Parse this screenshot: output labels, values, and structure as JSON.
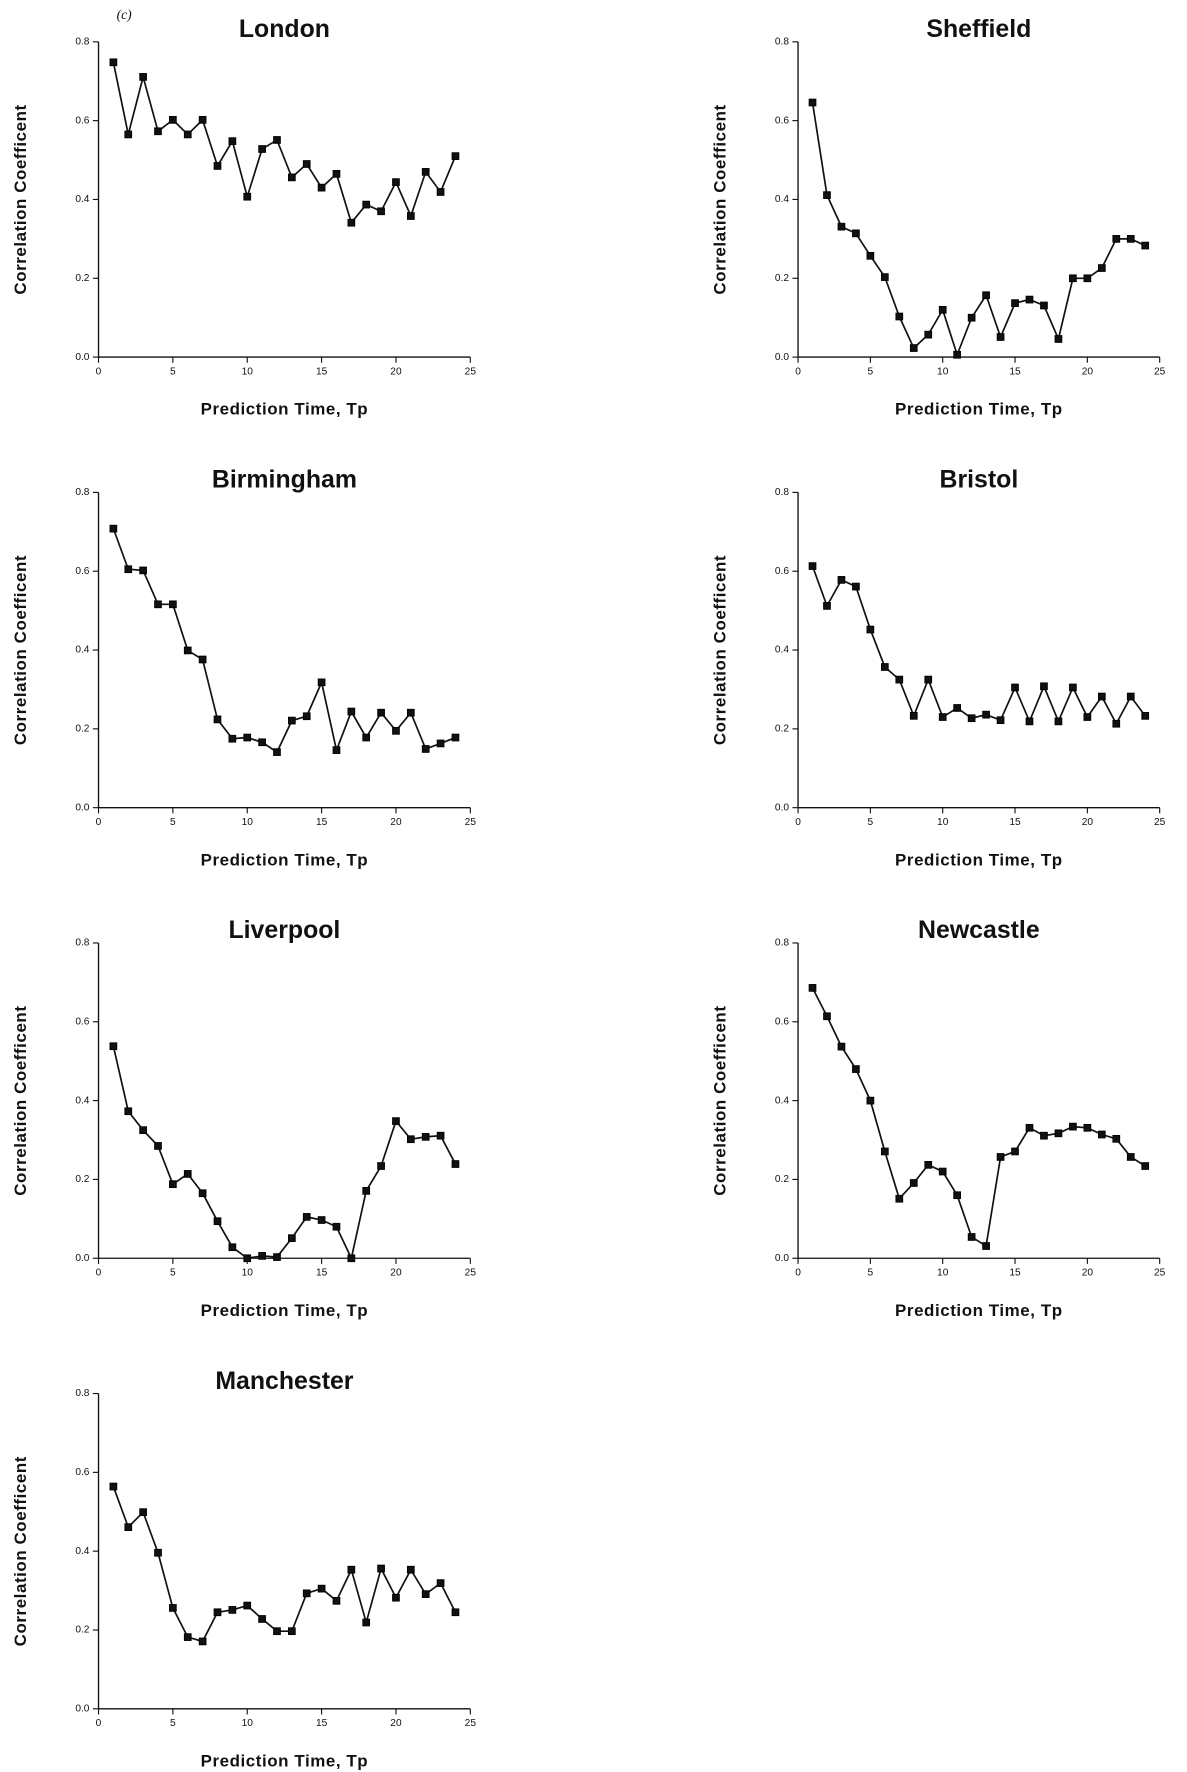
{
  "panel_label": "(c)",
  "chart_data": [
    {
      "type": "line",
      "title": "London",
      "xlabel": "Prediction Time,  Tp",
      "ylabel": "Correlation   Coefficent",
      "color": "#111111",
      "x": [
        1,
        2,
        3,
        4,
        5,
        6,
        7,
        8,
        9,
        10,
        11,
        12,
        13,
        14,
        15,
        16,
        17,
        18,
        19,
        20,
        21,
        22,
        23,
        24
      ],
      "values": [
        0.748,
        0.565,
        0.711,
        0.573,
        0.602,
        0.565,
        0.602,
        0.485,
        0.548,
        0.407,
        0.528,
        0.551,
        0.456,
        0.49,
        0.43,
        0.465,
        0.341,
        0.387,
        0.37,
        0.444,
        0.358,
        0.47,
        0.419,
        0.51
      ],
      "xlim": [
        0,
        25
      ],
      "xticks": [
        0,
        5,
        10,
        15,
        20,
        25
      ],
      "ylim": [
        0,
        0.8
      ],
      "yticks": [
        {
          "value": 0,
          "label": "0.0"
        },
        0.2,
        0.4,
        0.6,
        0.8
      ]
    },
    {
      "type": "line",
      "title": "Sheffield",
      "xlabel": "Prediction Time,  Tp",
      "ylabel": "Correlation   Coefficent",
      "color": "#111111",
      "x": [
        1,
        2,
        3,
        4,
        5,
        6,
        7,
        8,
        9,
        10,
        11,
        12,
        13,
        14,
        15,
        16,
        17,
        18,
        19,
        20,
        21,
        22,
        23,
        24
      ],
      "values": [
        0.646,
        0.411,
        0.331,
        0.314,
        0.257,
        0.203,
        0.103,
        0.023,
        0.057,
        0.12,
        0.006,
        0.1,
        0.157,
        0.051,
        0.137,
        0.146,
        0.131,
        0.046,
        0.2,
        0.2,
        0.226,
        0.3,
        0.3,
        0.283
      ],
      "xlim": [
        0,
        25
      ],
      "xticks": [
        0,
        5,
        10,
        15,
        20,
        25
      ],
      "ylim": [
        0,
        0.8
      ],
      "yticks": [
        {
          "value": 0,
          "label": "0.0"
        },
        0.2,
        0.4,
        0.6,
        0.8
      ]
    },
    {
      "type": "line",
      "title": "Birmingham",
      "xlabel": "Prediction Time,  Tp",
      "ylabel": "Correlation   Coefficent",
      "color": "#111111",
      "x": [
        1,
        2,
        3,
        4,
        5,
        6,
        7,
        8,
        9,
        10,
        11,
        12,
        13,
        14,
        15,
        16,
        17,
        18,
        19,
        20,
        21,
        22,
        23,
        24
      ],
      "values": [
        0.708,
        0.605,
        0.602,
        0.516,
        0.516,
        0.399,
        0.376,
        0.224,
        0.175,
        0.178,
        0.166,
        0.141,
        0.221,
        0.232,
        0.318,
        0.146,
        0.244,
        0.178,
        0.241,
        0.195,
        0.241,
        0.149,
        0.163,
        0.178
      ],
      "xlim": [
        0,
        25
      ],
      "xticks": [
        0,
        5,
        10,
        15,
        20,
        25
      ],
      "ylim": [
        0,
        0.8
      ],
      "yticks": [
        {
          "value": 0,
          "label": "0.0"
        },
        0.2,
        0.4,
        0.6,
        0.8
      ]
    },
    {
      "type": "line",
      "title": "Bristol",
      "xlabel": "Prediction Time,  Tp",
      "ylabel": "Correlation   Coefficent",
      "color": "#111111",
      "x": [
        1,
        2,
        3,
        4,
        5,
        6,
        7,
        8,
        9,
        10,
        11,
        12,
        13,
        14,
        15,
        16,
        17,
        18,
        19,
        20,
        21,
        22,
        23,
        24
      ],
      "values": [
        0.613,
        0.512,
        0.578,
        0.561,
        0.452,
        0.357,
        0.325,
        0.233,
        0.325,
        0.23,
        0.253,
        0.227,
        0.236,
        0.222,
        0.305,
        0.219,
        0.308,
        0.219,
        0.305,
        0.23,
        0.282,
        0.213,
        0.282,
        0.233
      ],
      "xlim": [
        0,
        25
      ],
      "xticks": [
        0,
        5,
        10,
        15,
        20,
        25
      ],
      "ylim": [
        0,
        0.8
      ],
      "yticks": [
        {
          "value": 0,
          "label": "0.0"
        },
        0.2,
        0.4,
        0.6,
        0.8
      ]
    },
    {
      "type": "line",
      "title": "Liverpool",
      "xlabel": "Prediction Time,  Tp",
      "ylabel": "Correlation   Coefficent",
      "color": "#111111",
      "x": [
        1,
        2,
        3,
        4,
        5,
        6,
        7,
        8,
        9,
        10,
        11,
        12,
        13,
        14,
        15,
        16,
        17,
        18,
        19,
        20,
        21,
        22,
        23,
        24
      ],
      "values": [
        0.538,
        0.373,
        0.325,
        0.285,
        0.188,
        0.214,
        0.165,
        0.094,
        0.028,
        0.0,
        0.006,
        0.003,
        0.051,
        0.105,
        0.097,
        0.08,
        0.0,
        0.171,
        0.234,
        0.348,
        0.302,
        0.308,
        0.311,
        0.239
      ],
      "xlim": [
        0,
        25
      ],
      "xticks": [
        0,
        5,
        10,
        15,
        20,
        25
      ],
      "ylim": [
        0,
        0.8
      ],
      "yticks": [
        {
          "value": 0,
          "label": "0.0"
        },
        0.2,
        0.4,
        0.6,
        0.8
      ]
    },
    {
      "type": "line",
      "title": "Newcastle",
      "xlabel": "Prediction Time,  Tp",
      "ylabel": "Correlation   Coefficent",
      "color": "#111111",
      "x": [
        1,
        2,
        3,
        4,
        5,
        6,
        7,
        8,
        9,
        10,
        11,
        12,
        13,
        14,
        15,
        16,
        17,
        18,
        19,
        20,
        21,
        22,
        23,
        24
      ],
      "values": [
        0.686,
        0.614,
        0.537,
        0.48,
        0.4,
        0.271,
        0.151,
        0.191,
        0.237,
        0.22,
        0.16,
        0.054,
        0.031,
        0.257,
        0.271,
        0.331,
        0.311,
        0.317,
        0.334,
        0.331,
        0.314,
        0.303,
        0.257,
        0.234
      ],
      "xlim": [
        0,
        25
      ],
      "xticks": [
        0,
        5,
        10,
        15,
        20,
        25
      ],
      "ylim": [
        0,
        0.8
      ],
      "yticks": [
        {
          "value": 0,
          "label": "0.0"
        },
        0.2,
        0.4,
        0.6,
        0.8
      ]
    },
    {
      "type": "line",
      "title": "Manchester",
      "xlabel": "Prediction Time,  Tp",
      "ylabel": "Correlation   Coefficent",
      "color": "#111111",
      "x": [
        1,
        2,
        3,
        4,
        5,
        6,
        7,
        8,
        9,
        10,
        11,
        12,
        13,
        14,
        15,
        16,
        17,
        18,
        19,
        20,
        21,
        22,
        23,
        24
      ],
      "values": [
        0.564,
        0.461,
        0.499,
        0.396,
        0.256,
        0.182,
        0.171,
        0.245,
        0.251,
        0.262,
        0.228,
        0.197,
        0.197,
        0.293,
        0.305,
        0.274,
        0.353,
        0.219,
        0.356,
        0.282,
        0.353,
        0.291,
        0.319,
        0.245
      ],
      "xlim": [
        0,
        25
      ],
      "xticks": [
        0,
        5,
        10,
        15,
        20,
        25
      ],
      "ylim": [
        0,
        0.8
      ],
      "yticks": [
        {
          "value": 0,
          "label": "0.0"
        },
        0.2,
        0.4,
        0.6,
        0.8
      ]
    }
  ]
}
